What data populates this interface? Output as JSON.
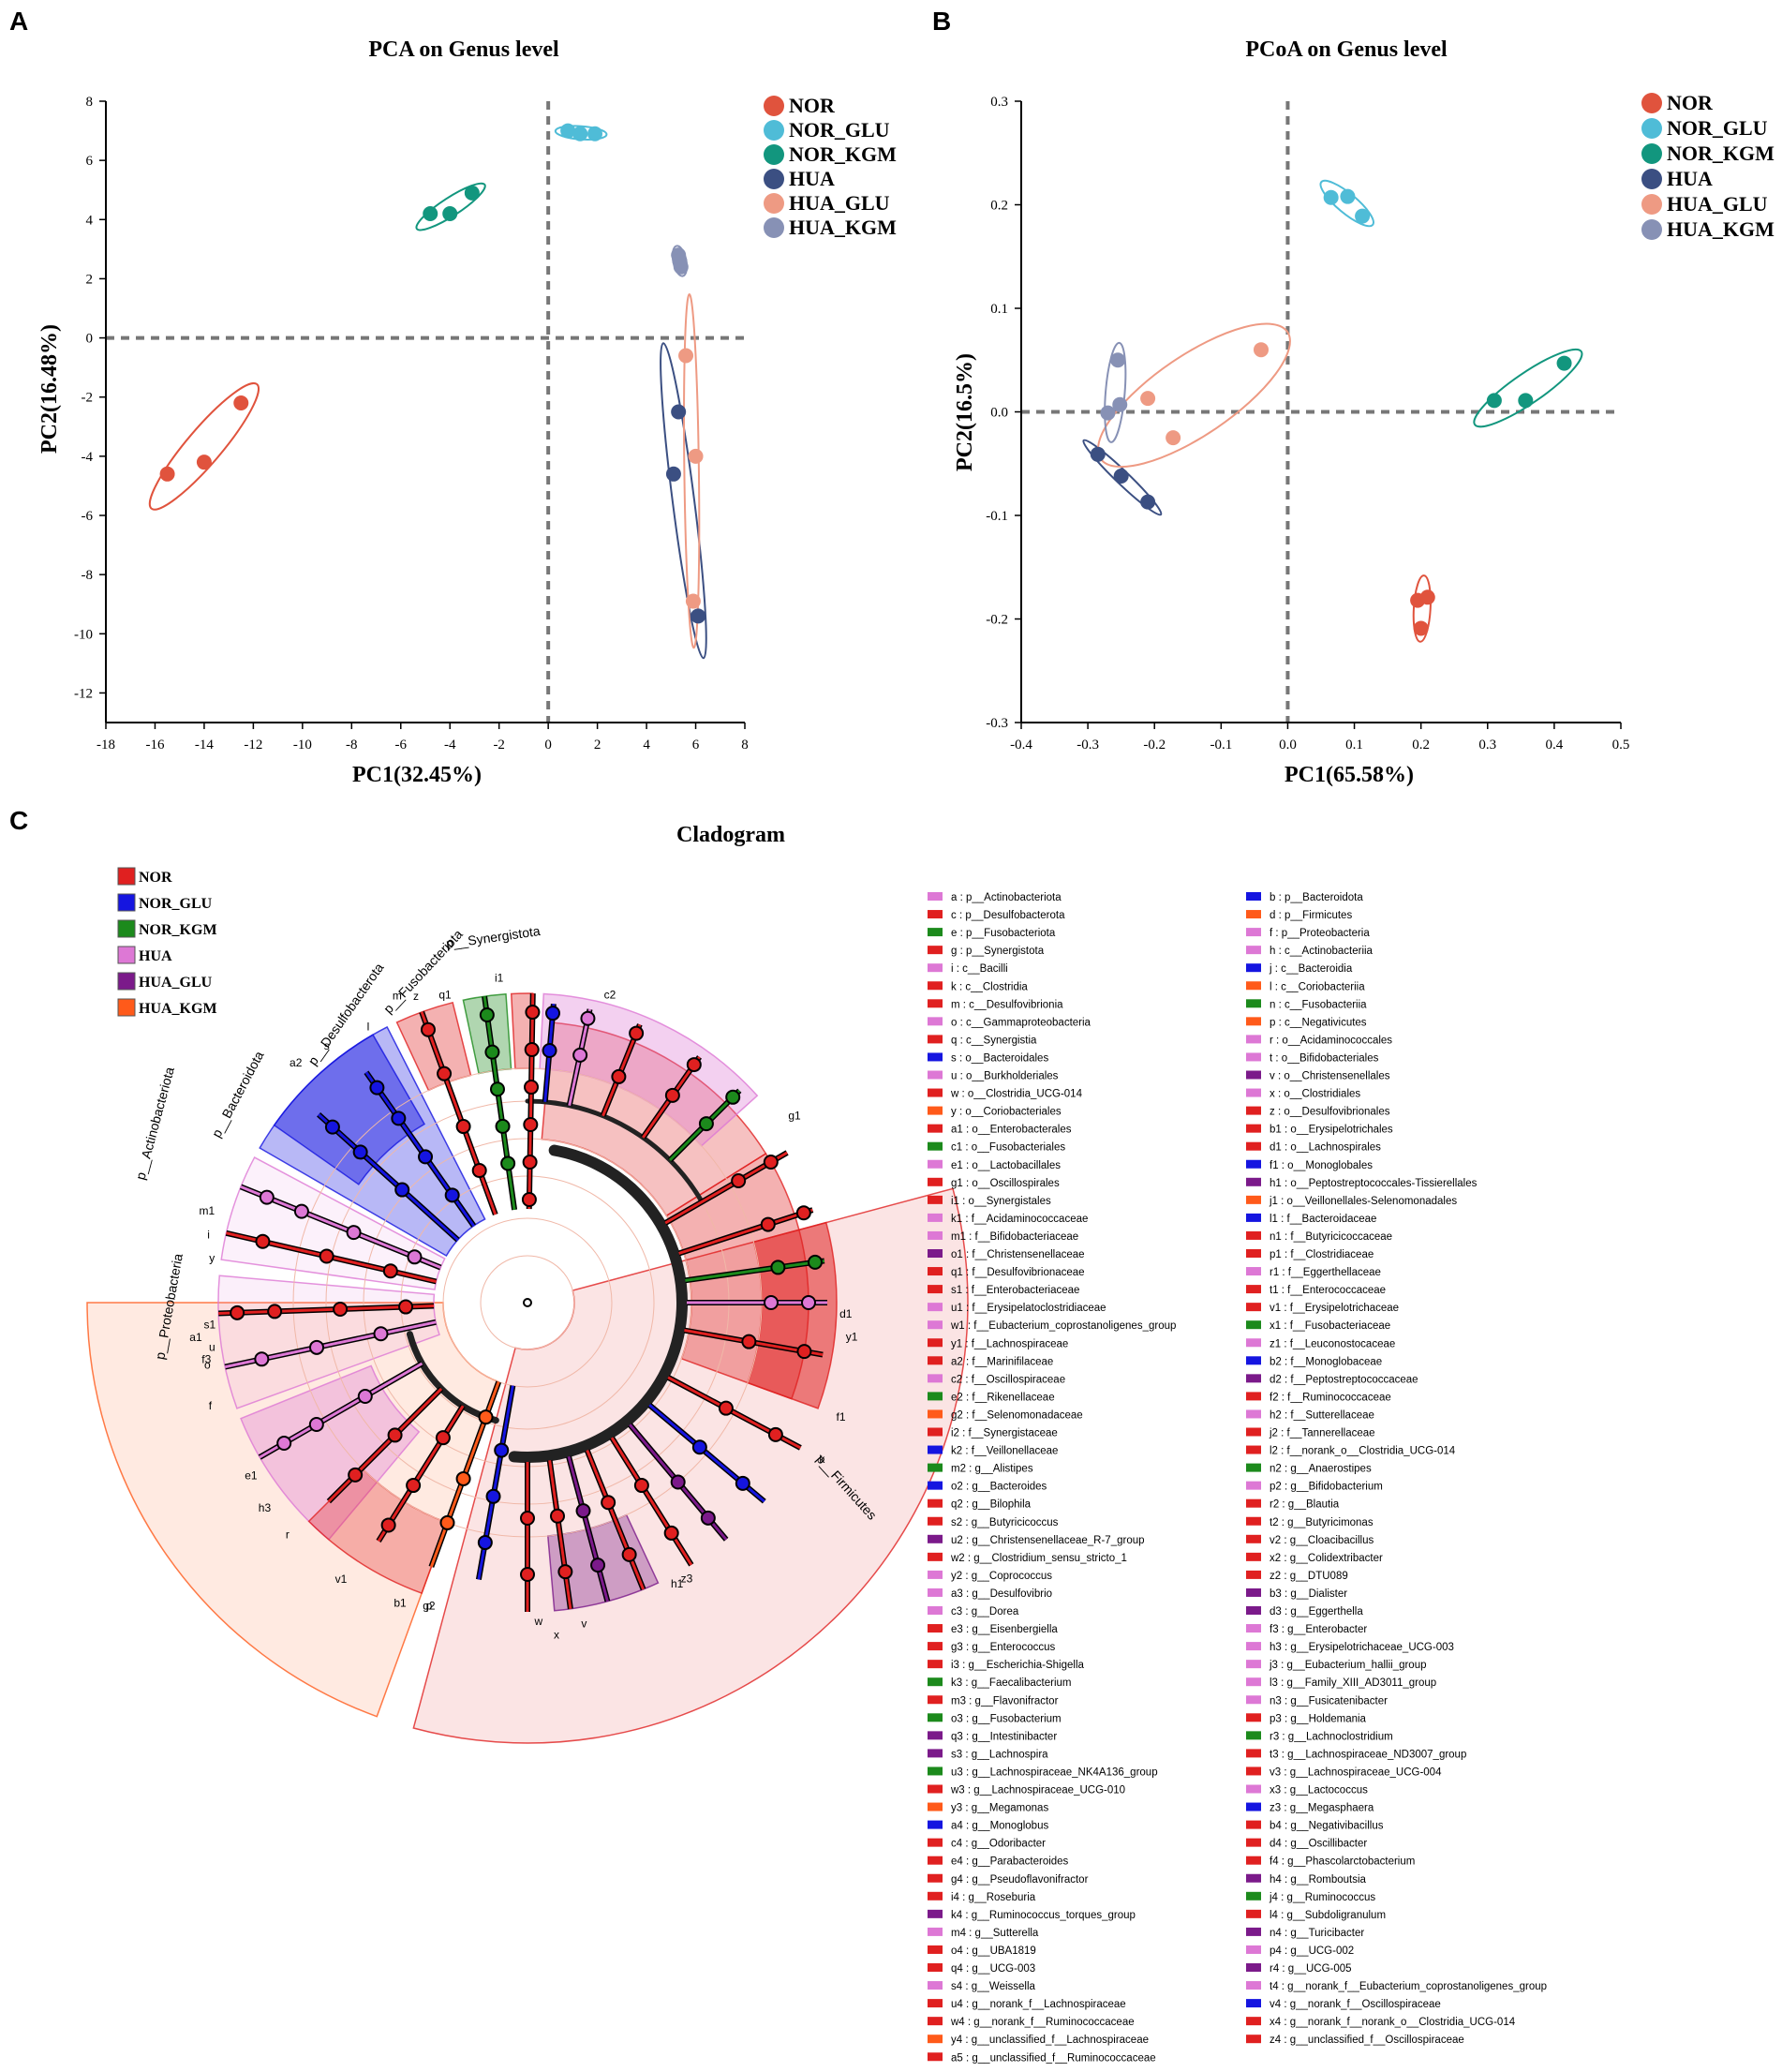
{
  "panels": {
    "A": {
      "letter": "A",
      "title": "PCA on Genus level"
    },
    "B": {
      "letter": "B",
      "title": "PCoA on Genus level"
    },
    "C": {
      "letter": "C",
      "title": "Cladogram"
    }
  },
  "colors": {
    "NOR": "#e0533d",
    "NOR_GLU": "#4fbcd7",
    "NOR_KGM": "#12967e",
    "HUA": "#3b4f82",
    "HUA_GLU": "#ee9a83",
    "HUA_KGM": "#8791b5"
  },
  "chart_data": [
    {
      "type": "scatter",
      "title": "PCA on Genus level",
      "xlabel": "PC1(32.45%)",
      "ylabel": "PC2(16.48%)",
      "xlim": [
        -18,
        8
      ],
      "ylim": [
        -13,
        8
      ],
      "xticks": [
        -18,
        -16,
        -14,
        -12,
        -10,
        -8,
        -6,
        -4,
        -2,
        0,
        2,
        4,
        6,
        8
      ],
      "yticks": [
        8,
        6,
        4,
        2,
        0,
        -2,
        -4,
        -6,
        -8,
        -10,
        -12
      ],
      "series": [
        {
          "name": "NOR",
          "points": [
            [
              -15.5,
              -4.6
            ],
            [
              -14.0,
              -4.2
            ],
            [
              -12.5,
              -2.2
            ]
          ]
        },
        {
          "name": "NOR_GLU",
          "points": [
            [
              0.8,
              7.0
            ],
            [
              1.3,
              6.9
            ],
            [
              1.9,
              6.9
            ]
          ]
        },
        {
          "name": "NOR_KGM",
          "points": [
            [
              -4.8,
              4.2
            ],
            [
              -4.0,
              4.2
            ],
            [
              -3.1,
              4.9
            ]
          ]
        },
        {
          "name": "HUA",
          "points": [
            [
              5.3,
              -2.5
            ],
            [
              5.1,
              -4.6
            ],
            [
              6.1,
              -9.4
            ]
          ]
        },
        {
          "name": "HUA_GLU",
          "points": [
            [
              5.6,
              -0.6
            ],
            [
              6.0,
              -4.0
            ],
            [
              5.9,
              -8.9
            ]
          ]
        },
        {
          "name": "HUA_KGM",
          "points": [
            [
              5.3,
              2.8
            ],
            [
              5.4,
              2.4
            ],
            [
              5.35,
              2.6
            ]
          ]
        }
      ],
      "legend": [
        "NOR",
        "NOR_GLU",
        "NOR_KGM",
        "HUA",
        "HUA_GLU",
        "HUA_KGM"
      ]
    },
    {
      "type": "scatter",
      "title": "PCoA on Genus level",
      "xlabel": "PC1(65.58%)",
      "ylabel": "PC2(16.5%)",
      "xlim": [
        -0.4,
        0.5
      ],
      "ylim": [
        -0.3,
        0.3
      ],
      "xticks": [
        "-0.4",
        "-0.3",
        "-0.2",
        "-0.1",
        "0.0",
        "0.1",
        "0.2",
        "0.3",
        "0.4",
        "0.5"
      ],
      "yticks": [
        "0.3",
        "0.2",
        "0.1",
        "0.0",
        "-0.1",
        "-0.2",
        "-0.3"
      ],
      "series": [
        {
          "name": "NOR",
          "points": [
            [
              0.195,
              -0.182
            ],
            [
              0.21,
              -0.179
            ],
            [
              0.2,
              -0.209
            ]
          ]
        },
        {
          "name": "NOR_GLU",
          "points": [
            [
              0.065,
              0.207
            ],
            [
              0.09,
              0.208
            ],
            [
              0.112,
              0.189
            ]
          ]
        },
        {
          "name": "NOR_KGM",
          "points": [
            [
              0.31,
              0.011
            ],
            [
              0.357,
              0.011
            ],
            [
              0.415,
              0.047
            ]
          ]
        },
        {
          "name": "HUA",
          "points": [
            [
              -0.285,
              -0.041
            ],
            [
              -0.25,
              -0.062
            ],
            [
              -0.21,
              -0.087
            ]
          ]
        },
        {
          "name": "HUA_GLU",
          "points": [
            [
              -0.21,
              0.013
            ],
            [
              -0.172,
              -0.025
            ],
            [
              -0.04,
              0.06
            ]
          ]
        },
        {
          "name": "HUA_KGM",
          "points": [
            [
              -0.27,
              -0.001
            ],
            [
              -0.252,
              0.007
            ],
            [
              -0.255,
              0.05
            ]
          ]
        }
      ],
      "legend": [
        "NOR",
        "NOR_GLU",
        "NOR_KGM",
        "HUA",
        "HUA_GLU",
        "HUA_KGM"
      ]
    }
  ],
  "cladogram": {
    "legend": [
      {
        "name": "NOR",
        "color": "#e02020"
      },
      {
        "name": "NOR_GLU",
        "color": "#1515e0"
      },
      {
        "name": "NOR_KGM",
        "color": "#1c8a1c"
      },
      {
        "name": "HUA",
        "color": "#dd78d5"
      },
      {
        "name": "HUA_GLU",
        "color": "#7b1a8a"
      },
      {
        "name": "HUA_KGM",
        "color": "#ff5a1a"
      }
    ],
    "phylum_labels": [
      "p__Bacteroidota",
      "p__Desulfobacterota",
      "p__Fusobacteriota",
      "p__Synergistota",
      "p__Actinobacteriota",
      "p__Proteobacteria",
      "p__Firmicutes"
    ],
    "ring_letters": [
      "c2",
      "g1",
      "f1",
      "d1",
      "y1",
      "k",
      "h1",
      "z",
      "m",
      "q1",
      "s",
      "a2",
      "l",
      "e1",
      "m1",
      "y",
      "i",
      "f",
      "u",
      "o",
      "r",
      "p",
      "b1",
      "v1",
      "g2",
      "i1",
      "a1",
      "s1",
      "f3",
      "x",
      "w",
      "v",
      "h3",
      "z3"
    ]
  },
  "taxa_legend": [
    {
      "text": "a : p__Actinobacteriota",
      "color": "#dd78d5"
    },
    {
      "text": "b : p__Bacteroidota",
      "color": "#1515e0"
    },
    {
      "text": "c : p__Desulfobacterota",
      "color": "#e02020"
    },
    {
      "text": "d : p__Firmicutes",
      "color": "#ff5a1a"
    },
    {
      "text": "e : p__Fusobacteriota",
      "color": "#1c8a1c"
    },
    {
      "text": "f : p__Proteobacteria",
      "color": "#dd78d5"
    },
    {
      "text": "g : p__Synergistota",
      "color": "#e02020"
    },
    {
      "text": "h : c__Actinobacteriia",
      "color": "#dd78d5"
    },
    {
      "text": "i : c__Bacilli",
      "color": "#dd78d5"
    },
    {
      "text": "j : c__Bacteroidia",
      "color": "#1515e0"
    },
    {
      "text": "k : c__Clostridia",
      "color": "#e02020"
    },
    {
      "text": "l : c__Coriobacteriia",
      "color": "#ff5a1a"
    },
    {
      "text": "m : c__Desulfovibrionia",
      "color": "#e02020"
    },
    {
      "text": "n : c__Fusobacteriia",
      "color": "#1c8a1c"
    },
    {
      "text": "o : c__Gammaproteobacteria",
      "color": "#dd78d5"
    },
    {
      "text": "p : c__Negativicutes",
      "color": "#ff5a1a"
    },
    {
      "text": "q : c__Synergistia",
      "color": "#e02020"
    },
    {
      "text": "r : o__Acidaminococcales",
      "color": "#dd78d5"
    },
    {
      "text": "s : o__Bacteroidales",
      "color": "#1515e0"
    },
    {
      "text": "t : o__Bifidobacteriales",
      "color": "#dd78d5"
    },
    {
      "text": "u : o__Burkholderiales",
      "color": "#dd78d5"
    },
    {
      "text": "v : o__Christensenellales",
      "color": "#7b1a8a"
    },
    {
      "text": "w : o__Clostridia_UCG-014",
      "color": "#e02020"
    },
    {
      "text": "x : o__Clostridiales",
      "color": "#dd78d5"
    },
    {
      "text": "y : o__Coriobacteriales",
      "color": "#ff5a1a"
    },
    {
      "text": "z : o__Desulfovibrionales",
      "color": "#e02020"
    },
    {
      "text": "a1 : o__Enterobacterales",
      "color": "#e02020"
    },
    {
      "text": "b1 : o__Erysipelotrichales",
      "color": "#e02020"
    },
    {
      "text": "c1 : o__Fusobacteriales",
      "color": "#1c8a1c"
    },
    {
      "text": "d1 : o__Lachnospirales",
      "color": "#e02020"
    },
    {
      "text": "e1 : o__Lactobacillales",
      "color": "#dd78d5"
    },
    {
      "text": "f1 : o__Monoglobales",
      "color": "#1515e0"
    },
    {
      "text": "g1 : o__Oscillospirales",
      "color": "#e02020"
    },
    {
      "text": "h1 : o__Peptostreptococcales-Tissierellales",
      "color": "#7b1a8a"
    },
    {
      "text": "i1 : o__Synergistales",
      "color": "#e02020"
    },
    {
      "text": "j1 : o__Veillonellales-Selenomonadales",
      "color": "#ff5a1a"
    },
    {
      "text": "k1 : f__Acidaminococcaceae",
      "color": "#dd78d5"
    },
    {
      "text": "l1 : f__Bacteroidaceae",
      "color": "#1515e0"
    },
    {
      "text": "m1 : f__Bifidobacteriaceae",
      "color": "#dd78d5"
    },
    {
      "text": "n1 : f__Butyricicoccaceae",
      "color": "#e02020"
    },
    {
      "text": "o1 : f__Christensenellaceae",
      "color": "#7b1a8a"
    },
    {
      "text": "p1 : f__Clostridiaceae",
      "color": "#e02020"
    },
    {
      "text": "q1 : f__Desulfovibrionaceae",
      "color": "#e02020"
    },
    {
      "text": "r1 : f__Eggerthellaceae",
      "color": "#dd78d5"
    },
    {
      "text": "s1 : f__Enterobacteriaceae",
      "color": "#e02020"
    },
    {
      "text": "t1 : f__Enterococcaceae",
      "color": "#e02020"
    },
    {
      "text": "u1 : f__Erysipelatoclostridiaceae",
      "color": "#dd78d5"
    },
    {
      "text": "v1 : f__Erysipelotrichaceae",
      "color": "#e02020"
    },
    {
      "text": "w1 : f__Eubacterium_coprostanoligenes_group",
      "color": "#dd78d5"
    },
    {
      "text": "x1 : f__Fusobacteriaceae",
      "color": "#1c8a1c"
    },
    {
      "text": "y1 : f__Lachnospiraceae",
      "color": "#e02020"
    },
    {
      "text": "z1 : f__Leuconostocaceae",
      "color": "#dd78d5"
    },
    {
      "text": "a2 : f__Marinifilaceae",
      "color": "#e02020"
    },
    {
      "text": "b2 : f__Monoglobaceae",
      "color": "#1515e0"
    },
    {
      "text": "c2 : f__Oscillospiraceae",
      "color": "#dd78d5"
    },
    {
      "text": "d2 : f__Peptostreptococcaceae",
      "color": "#7b1a8a"
    },
    {
      "text": "e2 : f__Rikenellaceae",
      "color": "#1c8a1c"
    },
    {
      "text": "f2 : f__Ruminococcaceae",
      "color": "#e02020"
    },
    {
      "text": "g2 : f__Selenomonadaceae",
      "color": "#ff5a1a"
    },
    {
      "text": "h2 : f__Sutterellaceae",
      "color": "#dd78d5"
    },
    {
      "text": "i2 : f__Synergistaceae",
      "color": "#e02020"
    },
    {
      "text": "j2 : f__Tannerellaceae",
      "color": "#e02020"
    },
    {
      "text": "k2 : f__Veillonellaceae",
      "color": "#1515e0"
    },
    {
      "text": "l2 : f__norank_o__Clostridia_UCG-014",
      "color": "#e02020"
    },
    {
      "text": "m2 : g__Alistipes",
      "color": "#1c8a1c"
    },
    {
      "text": "n2 : g__Anaerostipes",
      "color": "#1c8a1c"
    },
    {
      "text": "o2 : g__Bacteroides",
      "color": "#1515e0"
    },
    {
      "text": "p2 : g__Bifidobacterium",
      "color": "#dd78d5"
    },
    {
      "text": "q2 : g__Bilophila",
      "color": "#e02020"
    },
    {
      "text": "r2 : g__Blautia",
      "color": "#e02020"
    },
    {
      "text": "s2 : g__Butyricicoccus",
      "color": "#e02020"
    },
    {
      "text": "t2 : g__Butyricimonas",
      "color": "#e02020"
    },
    {
      "text": "u2 : g__Christensenellaceae_R-7_group",
      "color": "#7b1a8a"
    },
    {
      "text": "v2 : g__Cloacibacillus",
      "color": "#e02020"
    },
    {
      "text": "w2 : g__Clostridium_sensu_stricto_1",
      "color": "#e02020"
    },
    {
      "text": "x2 : g__Colidextribacter",
      "color": "#e02020"
    },
    {
      "text": "y2 : g__Coprococcus",
      "color": "#dd78d5"
    },
    {
      "text": "z2 : g__DTU089",
      "color": "#e02020"
    },
    {
      "text": "a3 : g__Desulfovibrio",
      "color": "#dd78d5"
    },
    {
      "text": "b3 : g__Dialister",
      "color": "#7b1a8a"
    },
    {
      "text": "c3 : g__Dorea",
      "color": "#dd78d5"
    },
    {
      "text": "d3 : g__Eggerthella",
      "color": "#7b1a8a"
    },
    {
      "text": "e3 : g__Eisenbergiella",
      "color": "#e02020"
    },
    {
      "text": "f3 : g__Enterobacter",
      "color": "#dd78d5"
    },
    {
      "text": "g3 : g__Enterococcus",
      "color": "#e02020"
    },
    {
      "text": "h3 : g__Erysipelotrichaceae_UCG-003",
      "color": "#dd78d5"
    },
    {
      "text": "i3 : g__Escherichia-Shigella",
      "color": "#e02020"
    },
    {
      "text": "j3 : g__Eubacterium_hallii_group",
      "color": "#dd78d5"
    },
    {
      "text": "k3 : g__Faecalibacterium",
      "color": "#1c8a1c"
    },
    {
      "text": "l3 : g__Family_XIII_AD3011_group",
      "color": "#dd78d5"
    },
    {
      "text": "m3 : g__Flavonifractor",
      "color": "#e02020"
    },
    {
      "text": "n3 : g__Fusicatenibacter",
      "color": "#dd78d5"
    },
    {
      "text": "o3 : g__Fusobacterium",
      "color": "#1c8a1c"
    },
    {
      "text": "p3 : g__Holdemania",
      "color": "#e02020"
    },
    {
      "text": "q3 : g__Intestinibacter",
      "color": "#7b1a8a"
    },
    {
      "text": "r3 : g__Lachnoclostridium",
      "color": "#1c8a1c"
    },
    {
      "text": "s3 : g__Lachnospira",
      "color": "#7b1a8a"
    },
    {
      "text": "t3 : g__Lachnospiraceae_ND3007_group",
      "color": "#e02020"
    },
    {
      "text": "u3 : g__Lachnospiraceae_NK4A136_group",
      "color": "#1c8a1c"
    },
    {
      "text": "v3 : g__Lachnospiraceae_UCG-004",
      "color": "#e02020"
    },
    {
      "text": "w3 : g__Lachnospiraceae_UCG-010",
      "color": "#e02020"
    },
    {
      "text": "x3 : g__Lactococcus",
      "color": "#dd78d5"
    },
    {
      "text": "y3 : g__Megamonas",
      "color": "#ff5a1a"
    },
    {
      "text": "z3 : g__Megasphaera",
      "color": "#1515e0"
    },
    {
      "text": "a4 : g__Monoglobus",
      "color": "#1515e0"
    },
    {
      "text": "b4 : g__Negativibacillus",
      "color": "#e02020"
    },
    {
      "text": "c4 : g__Odoribacter",
      "color": "#e02020"
    },
    {
      "text": "d4 : g__Oscillibacter",
      "color": "#e02020"
    },
    {
      "text": "e4 : g__Parabacteroides",
      "color": "#e02020"
    },
    {
      "text": "f4 : g__Phascolarctobacterium",
      "color": "#e02020"
    },
    {
      "text": "g4 : g__Pseudoflavonifractor",
      "color": "#e02020"
    },
    {
      "text": "h4 : g__Romboutsia",
      "color": "#7b1a8a"
    },
    {
      "text": "i4 : g__Roseburia",
      "color": "#e02020"
    },
    {
      "text": "j4 : g__Ruminococcus",
      "color": "#1c8a1c"
    },
    {
      "text": "k4 : g__Ruminococcus_torques_group",
      "color": "#7b1a8a"
    },
    {
      "text": "l4 : g__Subdoligranulum",
      "color": "#e02020"
    },
    {
      "text": "m4 : g__Sutterella",
      "color": "#dd78d5"
    },
    {
      "text": "n4 : g__Turicibacter",
      "color": "#7b1a8a"
    },
    {
      "text": "o4 : g__UBA1819",
      "color": "#e02020"
    },
    {
      "text": "p4 : g__UCG-002",
      "color": "#dd78d5"
    },
    {
      "text": "q4 : g__UCG-003",
      "color": "#e02020"
    },
    {
      "text": "r4 : g__UCG-005",
      "color": "#7b1a8a"
    },
    {
      "text": "s4 : g__Weissella",
      "color": "#dd78d5"
    },
    {
      "text": "t4 : g__norank_f__Eubacterium_coprostanoligenes_group",
      "color": "#dd78d5"
    },
    {
      "text": "u4 : g__norank_f__Lachnospiraceae",
      "color": "#e02020"
    },
    {
      "text": "v4 : g__norank_f__Oscillospiraceae",
      "color": "#1515e0"
    },
    {
      "text": "w4 : g__norank_f__Ruminococcaceae",
      "color": "#e02020"
    },
    {
      "text": "x4 : g__norank_f__norank_o__Clostridia_UCG-014",
      "color": "#e02020"
    },
    {
      "text": "y4 : g__unclassified_f__Lachnospiraceae",
      "color": "#ff5a1a"
    },
    {
      "text": "z4 : g__unclassified_f__Oscillospiraceae",
      "color": "#e02020"
    },
    {
      "text": "a5 : g__unclassified_f__Ruminococcaceae",
      "color": "#e02020"
    }
  ]
}
